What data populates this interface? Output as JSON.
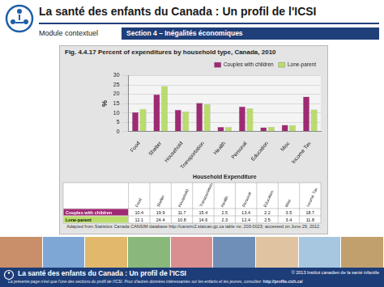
{
  "header": {
    "title": "La santé des enfants du Canada : Un profil de l'ICSI",
    "module": "Module contextuel",
    "section": "Section 4 – Inégalités économiques"
  },
  "chart_data": {
    "type": "bar",
    "title": "Fig. 4.4.17  Percent of expenditures by household type, Canada, 2010",
    "categories": [
      "Food",
      "Shelter",
      "Household",
      "Transportation",
      "Health",
      "Personal",
      "Education",
      "Misc",
      "Income Tax"
    ],
    "series": [
      {
        "name": "Couples with children",
        "color": "#9e2a73",
        "values": [
          10.4,
          19.9,
          11.7,
          15.4,
          2.5,
          13.4,
          2.2,
          3.5,
          18.7
        ]
      },
      {
        "name": "Lone-parent",
        "color": "#b9dc6b",
        "values": [
          12.1,
          24.4,
          10.8,
          14.6,
          2.3,
          12.4,
          2.5,
          3.4,
          11.8
        ]
      }
    ],
    "y_label": "%",
    "x_label": "Household Expenditure",
    "ylim": [
      0,
      30
    ],
    "yticks": [
      0,
      5,
      10,
      15,
      20,
      25,
      30
    ],
    "grid": true,
    "legend": "top right",
    "source": "Adapted from Statistics Canada CANSIM database http://cansim2.statcan.gc.ca table no. 203-0023; accessed on June 29, 2012."
  },
  "footer": {
    "title": "La santé des enfants du Canada : Un profil de l'ICSI",
    "copyright": "© 2013  Institut canadien de la santé infantile",
    "note": "La présente page n'est que l'une des sections du profil de l'ICSI. Pour d'autres données intéressantes sur les enfants et les jeunes, consultez:",
    "url": "http://profile.cich.ca/"
  }
}
